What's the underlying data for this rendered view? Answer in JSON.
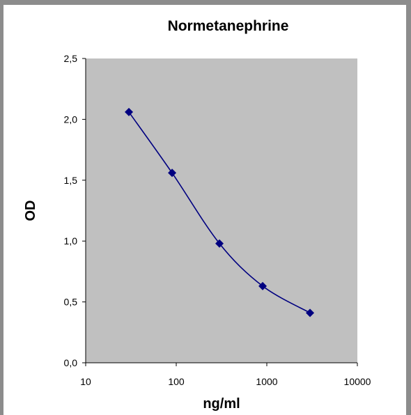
{
  "chart_data": {
    "type": "line",
    "title": "Normetanephrine",
    "xlabel": "ng/ml",
    "ylabel": "OD",
    "x_scale": "log",
    "xlim": [
      10,
      10000
    ],
    "ylim": [
      0,
      2.5
    ],
    "x_ticks": [
      "10",
      "100",
      "1000",
      "10000"
    ],
    "y_ticks": [
      "0,0",
      "0,5",
      "1,0",
      "1,5",
      "2,0",
      "2,5"
    ],
    "grid": false,
    "plot_background": "#c0c0c0",
    "series": [
      {
        "color": "#000080",
        "marker": "diamond",
        "smooth": true,
        "x": [
          30,
          90,
          300,
          900,
          3000
        ],
        "y": [
          2.06,
          1.56,
          0.98,
          0.63,
          0.41
        ]
      }
    ]
  }
}
